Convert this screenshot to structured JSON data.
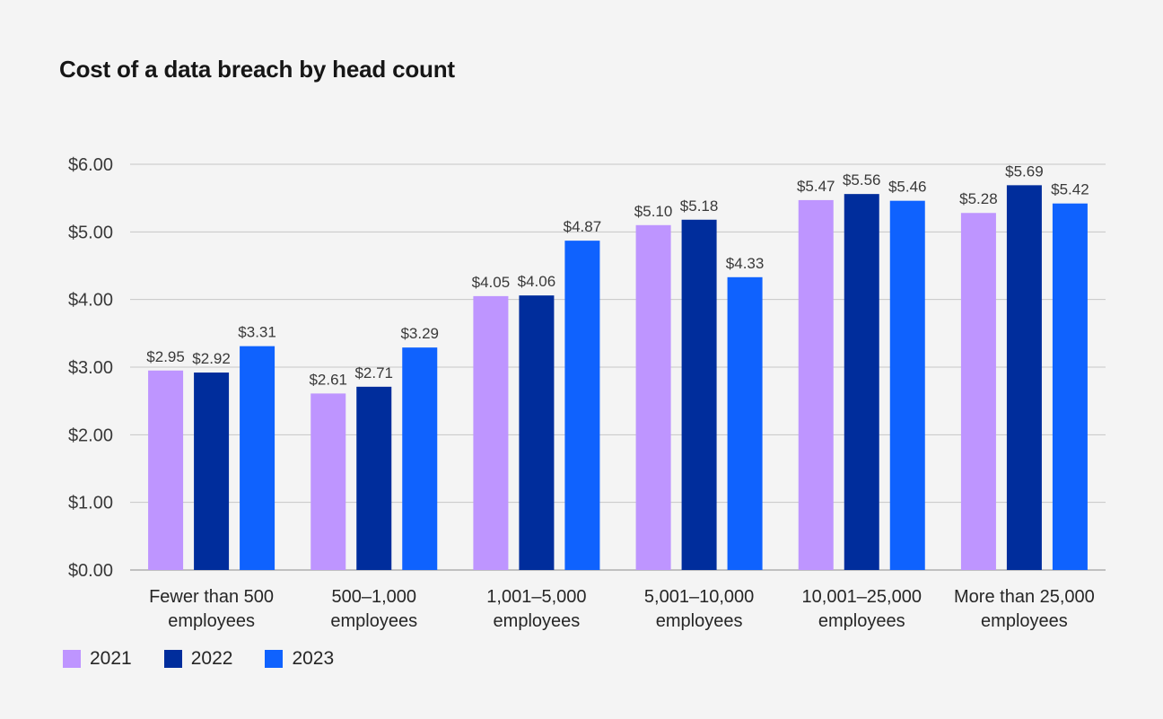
{
  "chart_data": {
    "type": "bar",
    "title": "Cost of a data breach by head count",
    "categories": [
      [
        "Fewer than 500",
        "employees"
      ],
      [
        "500–1,000",
        "employees"
      ],
      [
        "1,001–5,000",
        "employees"
      ],
      [
        "5,001–10,000",
        "employees"
      ],
      [
        "10,001–25,000",
        "employees"
      ],
      [
        "More than 25,000",
        "employees"
      ]
    ],
    "series": [
      {
        "name": "2021",
        "color": "#be95ff",
        "values": [
          2.95,
          2.61,
          4.05,
          5.1,
          5.47,
          5.28
        ],
        "labels": [
          "$2.95",
          "$2.61",
          "$4.05",
          "$5.10",
          "$5.47",
          "$5.28"
        ]
      },
      {
        "name": "2022",
        "color": "#002d9c",
        "values": [
          2.92,
          2.71,
          4.06,
          5.18,
          5.56,
          5.69
        ],
        "labels": [
          "$2.92",
          "$2.71",
          "$4.06",
          "$5.18",
          "$5.56",
          "$5.69"
        ]
      },
      {
        "name": "2023",
        "color": "#0f62fe",
        "values": [
          3.31,
          3.29,
          4.87,
          4.33,
          5.46,
          5.42
        ],
        "labels": [
          "$3.31",
          "$3.29",
          "$4.87",
          "$4.33",
          "$5.46",
          "$5.42"
        ]
      }
    ],
    "y_ticks": [
      0,
      1,
      2,
      3,
      4,
      5,
      6
    ],
    "y_tick_labels": [
      "$0.00",
      "$1.00",
      "$2.00",
      "$3.00",
      "$4.00",
      "$5.00",
      "$6.00"
    ],
    "ylim": [
      0,
      6
    ],
    "xlabel": "",
    "ylabel": "",
    "grid": true,
    "legend_position": "bottom-left"
  }
}
